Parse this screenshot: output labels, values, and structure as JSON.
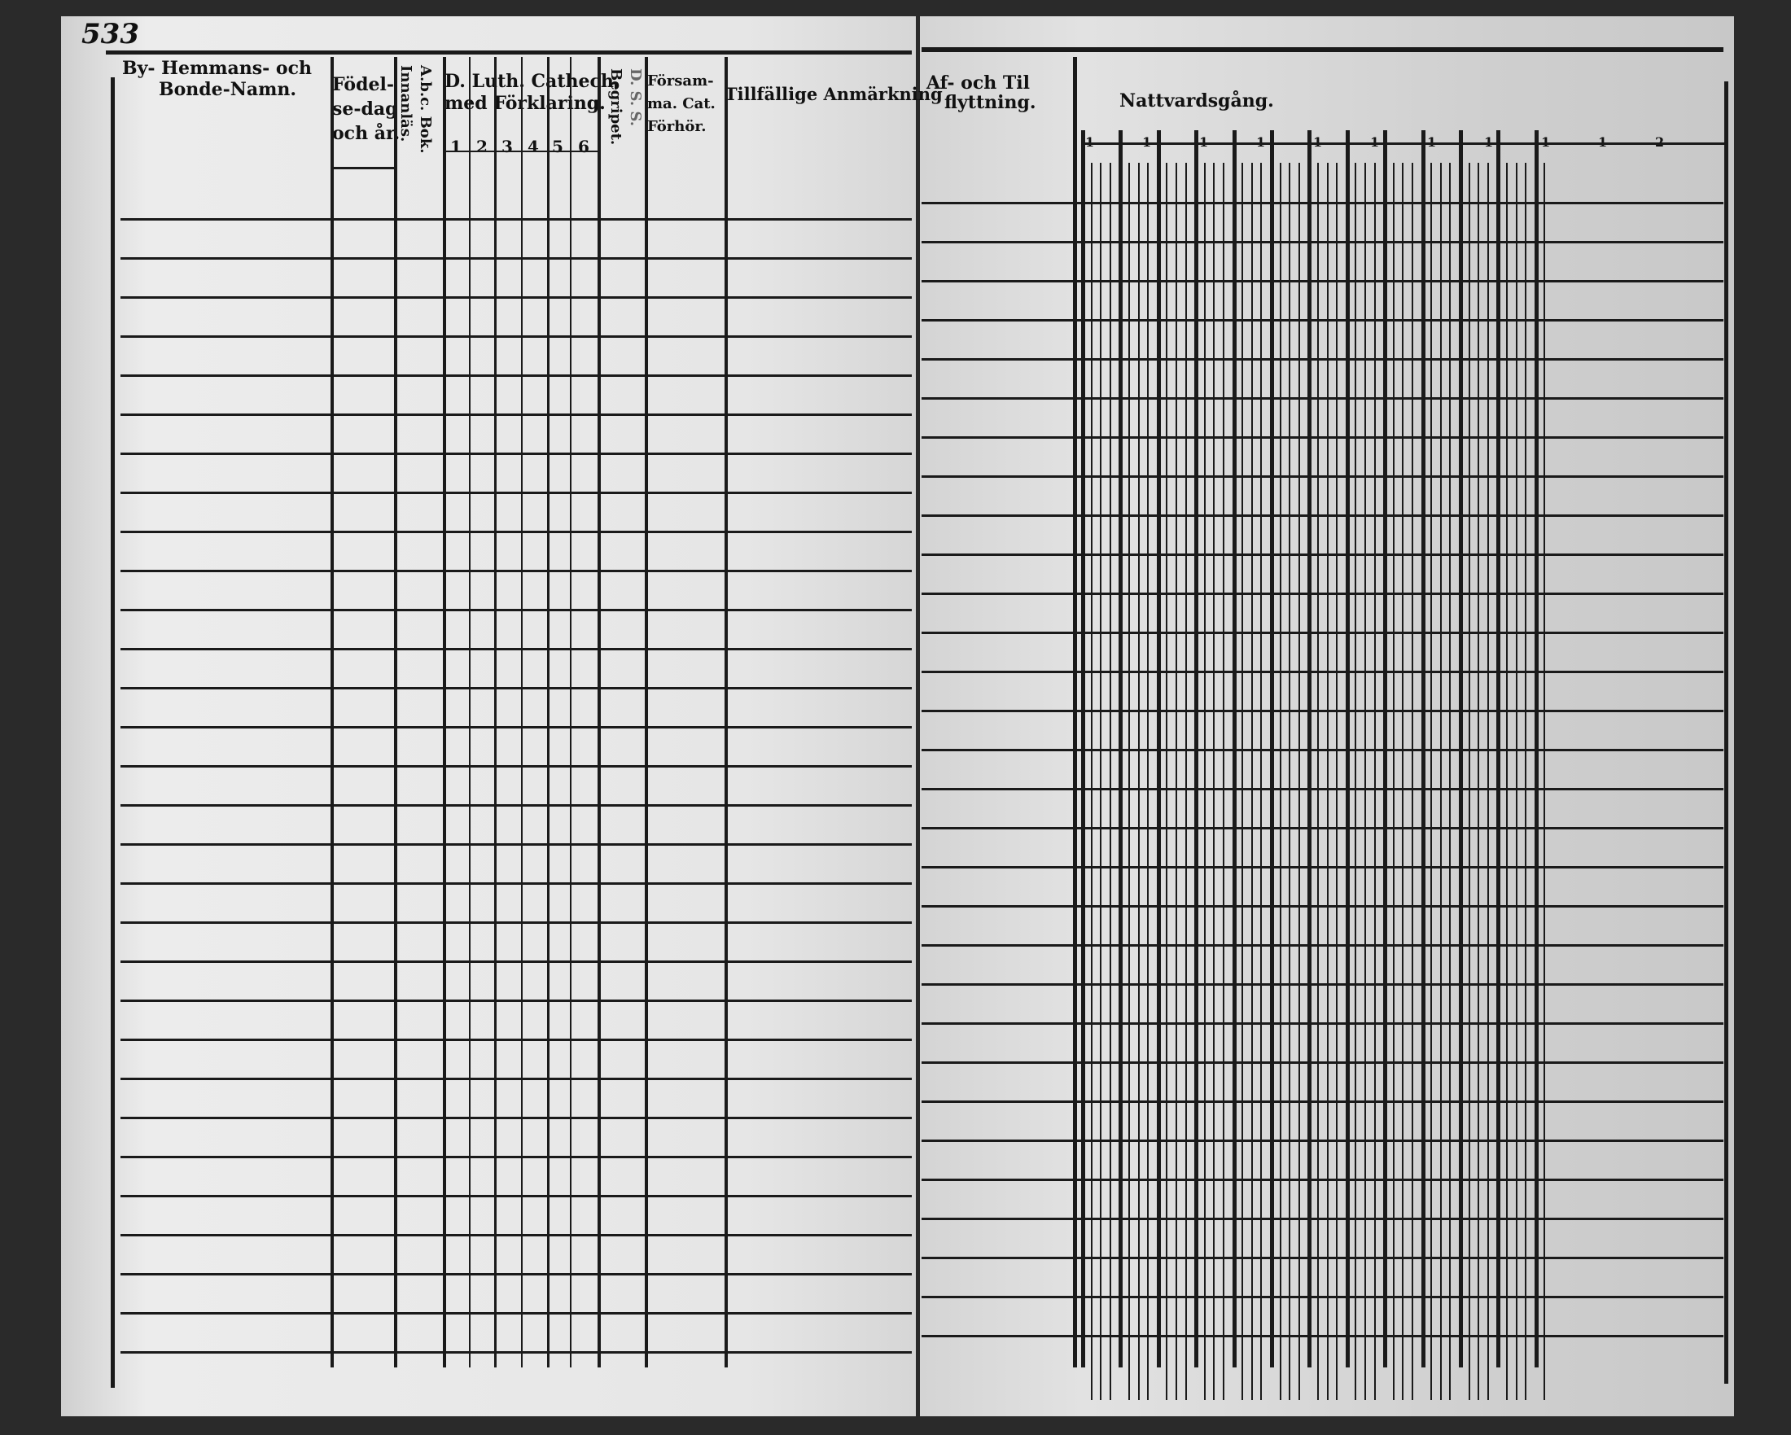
{
  "page_number": "533",
  "left_page": {
    "headers": {
      "by_hemmans": "By- Hemmans- och",
      "bonde_namn": "Bonde-Namn.",
      "fodelse": [
        "Födel-",
        "se-dag",
        "och år."
      ],
      "abc_bok": "A.b.c. Bok.",
      "innanlas": "Innanläs.",
      "luth_cathech": "D. Luth. Cathech.",
      "med_forklaring": "med Förklaring.",
      "cathech_numbers": [
        "1",
        "2",
        "3",
        "4",
        "5",
        "6"
      ],
      "begripet": "Begripet.",
      "dss": "D. S. S.",
      "forsamling": [
        "Försam-",
        "ma. Cat.",
        "Förhör."
      ],
      "tillfallige": "Tillfällige Anmärkning"
    }
  },
  "right_page": {
    "headers": {
      "af_och_til": "Af- och Til",
      "flyttning": "flyttning.",
      "nattvardsgang": "Nattvardsgång.",
      "column_numbers": [
        "1",
        "1",
        "1",
        "1",
        "1",
        "1",
        "1",
        "1",
        "1",
        "1",
        "2"
      ]
    }
  }
}
